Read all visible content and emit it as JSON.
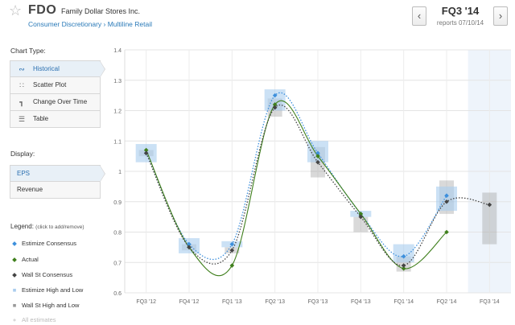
{
  "header": {
    "ticker": "FDO",
    "company": "Family Dollar Stores Inc.",
    "sector": "Consumer Discretionary › Multiline Retail",
    "quarter": "FQ3 '14",
    "reports": "reports 07/10/14",
    "prev_label": "‹",
    "next_label": "›",
    "star_icon": "star-outline-icon"
  },
  "chart_type": {
    "title": "Chart Type:",
    "items": [
      {
        "label": "Historical",
        "icon": "wave-icon",
        "active": true
      },
      {
        "label": "Scatter Plot",
        "icon": "scatter-icon",
        "active": false
      },
      {
        "label": "Change Over Time",
        "icon": "step-icon",
        "active": false
      },
      {
        "label": "Table",
        "icon": "table-icon",
        "active": false
      }
    ]
  },
  "display": {
    "title": "Display:",
    "items": [
      {
        "label": "EPS",
        "active": true
      },
      {
        "label": "Revenue",
        "active": false
      }
    ]
  },
  "legend": {
    "title": "Legend:",
    "note": "(click to add/remove)",
    "items": [
      {
        "label": "Estimize Consensus",
        "color": "#3d8fdc",
        "symbol": "diamond"
      },
      {
        "label": "Actual",
        "color": "#3f7f1c",
        "symbol": "diamond"
      },
      {
        "label": "Wall St Consensus",
        "color": "#444444",
        "symbol": "diamond"
      },
      {
        "label": "Estimize High and Low",
        "color": "#a9cdee",
        "symbol": "square"
      },
      {
        "label": "Wall St High and Low",
        "color": "#9a9a9a",
        "symbol": "square"
      },
      {
        "label": "All estimates",
        "color": "#d8d8d8",
        "symbol": "dot"
      }
    ]
  },
  "chart_data": {
    "type": "line",
    "categories": [
      "FQ3 '12",
      "FQ4 '12",
      "FQ1 '13",
      "FQ2 '13",
      "FQ3 '13",
      "FQ4 '13",
      "FQ1 '14",
      "FQ2 '14",
      "FQ3 '14"
    ],
    "ylim": [
      0.6,
      1.4
    ],
    "yticks": [
      "0.6",
      "0.7",
      "0.8",
      "0.9",
      "1",
      "1.1",
      "1.2",
      "1.3",
      "1.4"
    ],
    "yvalues": [
      0.6,
      0.7,
      0.8,
      0.9,
      1.0,
      1.1,
      1.2,
      1.3,
      1.4
    ],
    "grid": true,
    "highlight_category": "FQ3 '14",
    "series": [
      {
        "name": "Estimize Consensus",
        "color": "#3d8fdc",
        "style": "dotted",
        "values": [
          1.06,
          0.76,
          0.76,
          1.25,
          1.06,
          0.86,
          0.72,
          0.92,
          null
        ]
      },
      {
        "name": "Actual",
        "color": "#3f7f1c",
        "style": "solid",
        "values": [
          1.07,
          0.75,
          0.69,
          1.22,
          1.05,
          0.86,
          0.68,
          0.8,
          null
        ]
      },
      {
        "name": "Wall St Consensus",
        "color": "#444444",
        "style": "dotted",
        "values": [
          1.06,
          0.75,
          0.74,
          1.21,
          1.03,
          0.85,
          0.69,
          0.9,
          0.89
        ]
      }
    ],
    "estimize_range": [
      [
        1.03,
        1.09
      ],
      [
        0.73,
        0.78
      ],
      [
        0.75,
        0.77
      ],
      [
        1.2,
        1.27
      ],
      [
        1.03,
        1.1
      ],
      [
        0.85,
        0.87
      ],
      [
        0.7,
        0.76
      ],
      [
        0.87,
        0.95
      ],
      null
    ],
    "wallst_range": [
      [
        1.05,
        1.07
      ],
      [
        0.74,
        0.76
      ],
      [
        0.73,
        0.75
      ],
      [
        1.18,
        1.24
      ],
      [
        0.98,
        1.08
      ],
      [
        0.8,
        0.85
      ],
      [
        0.67,
        0.72
      ],
      [
        0.86,
        0.97
      ],
      [
        0.76,
        0.93
      ]
    ]
  }
}
